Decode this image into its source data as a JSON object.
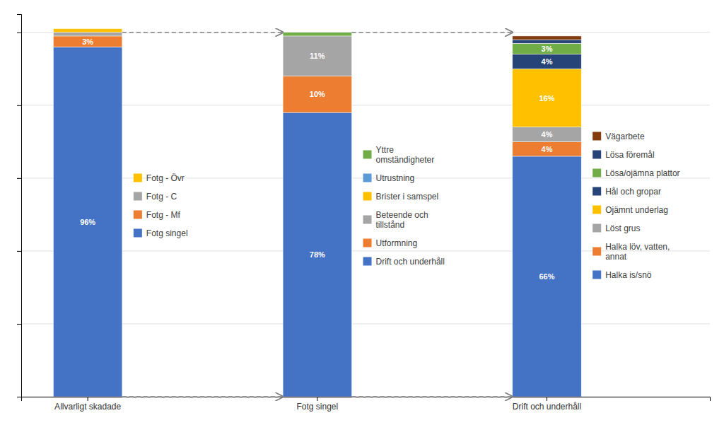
{
  "chart_data": {
    "type": "bar",
    "stacked": true,
    "data_labels": true,
    "grid": true,
    "tick_labels": "x",
    "categories": [
      "Allvarligt skadade",
      "Fotg singel",
      "Drift och underhåll"
    ],
    "ylim": [
      0,
      105
    ],
    "yticks": [
      0,
      20,
      40,
      60,
      80,
      100
    ],
    "series": [
      {
        "name": "Fotg singel",
        "color": "#4472C4",
        "values": [
          96,
          null,
          null
        ],
        "value_labels": [
          "96%",
          null,
          null
        ]
      },
      {
        "name": "Fotg - Mf",
        "color": "#ED7D31",
        "values": [
          3,
          null,
          null
        ],
        "value_labels": [
          "3%",
          null,
          null
        ]
      },
      {
        "name": "Fotg - C",
        "color": "#A5A5A5",
        "values": [
          1,
          null,
          null
        ],
        "value_labels": [
          null,
          null,
          null
        ]
      },
      {
        "name": "Fotg - Övr",
        "color": "#FFC000",
        "values": [
          1,
          null,
          null
        ],
        "value_labels": [
          null,
          null,
          null
        ]
      },
      {
        "name": "Drift och underhåll",
        "color": "#4472C4",
        "values": [
          null,
          78,
          null
        ],
        "value_labels": [
          null,
          "78%",
          null
        ]
      },
      {
        "name": "Utformning",
        "color": "#ED7D31",
        "values": [
          null,
          10,
          null
        ],
        "value_labels": [
          null,
          "10%",
          null
        ]
      },
      {
        "name": "Beteende och\ntillstånd",
        "color": "#A5A5A5",
        "values": [
          null,
          11,
          null
        ],
        "value_labels": [
          null,
          "11%",
          null
        ]
      },
      {
        "name": "Brister i samspel",
        "color": "#FFC000",
        "values": [
          null,
          0,
          null
        ],
        "value_labels": [
          null,
          null,
          null
        ]
      },
      {
        "name": "Utrustning",
        "color": "#5B9BD5",
        "values": [
          null,
          0,
          null
        ],
        "value_labels": [
          null,
          null,
          null
        ]
      },
      {
        "name": "Yttre\nomständigheter",
        "color": "#70AD47",
        "values": [
          null,
          1,
          null
        ],
        "value_labels": [
          null,
          null,
          null
        ]
      },
      {
        "name": "Halka is/snö",
        "color": "#4472C4",
        "values": [
          null,
          null,
          66
        ],
        "value_labels": [
          null,
          null,
          "66%"
        ]
      },
      {
        "name": "Halka löv, vatten,\nannat",
        "color": "#ED7D31",
        "values": [
          null,
          null,
          4
        ],
        "value_labels": [
          null,
          null,
          "4%"
        ]
      },
      {
        "name": "Löst grus",
        "color": "#A5A5A5",
        "values": [
          null,
          null,
          4
        ],
        "value_labels": [
          null,
          null,
          "4%"
        ]
      },
      {
        "name": "Ojämnt underlag",
        "color": "#FFC000",
        "values": [
          null,
          null,
          16
        ],
        "value_labels": [
          null,
          null,
          "16%"
        ]
      },
      {
        "name": "Hål och gropar",
        "color": "#264478",
        "values": [
          null,
          null,
          4
        ],
        "value_labels": [
          null,
          null,
          "4%"
        ]
      },
      {
        "name": "Lösa/ojämna plattor",
        "color": "#70AD47",
        "values": [
          null,
          null,
          3
        ],
        "value_labels": [
          null,
          null,
          "3%"
        ]
      },
      {
        "name": "Lösa föremål",
        "color": "#264478",
        "values": [
          null,
          null,
          1
        ],
        "value_labels": [
          null,
          null,
          null
        ]
      },
      {
        "name": "Vägarbete",
        "color": "#843C0C",
        "values": [
          null,
          null,
          1
        ],
        "value_labels": [
          null,
          null,
          null
        ]
      }
    ],
    "annotations": [
      {
        "type": "arrow",
        "from": "Allvarligt skadade",
        "to": "Fotg singel",
        "y": 100
      },
      {
        "type": "arrow",
        "from": "Fotg singel",
        "to": "Drift och underhåll",
        "y": 100
      },
      {
        "type": "arrow",
        "from": "Allvarligt skadade",
        "to": "Fotg singel",
        "y": 0
      },
      {
        "type": "arrow",
        "from": "Fotg singel",
        "to": "Drift och underhåll",
        "y": 0
      }
    ]
  }
}
